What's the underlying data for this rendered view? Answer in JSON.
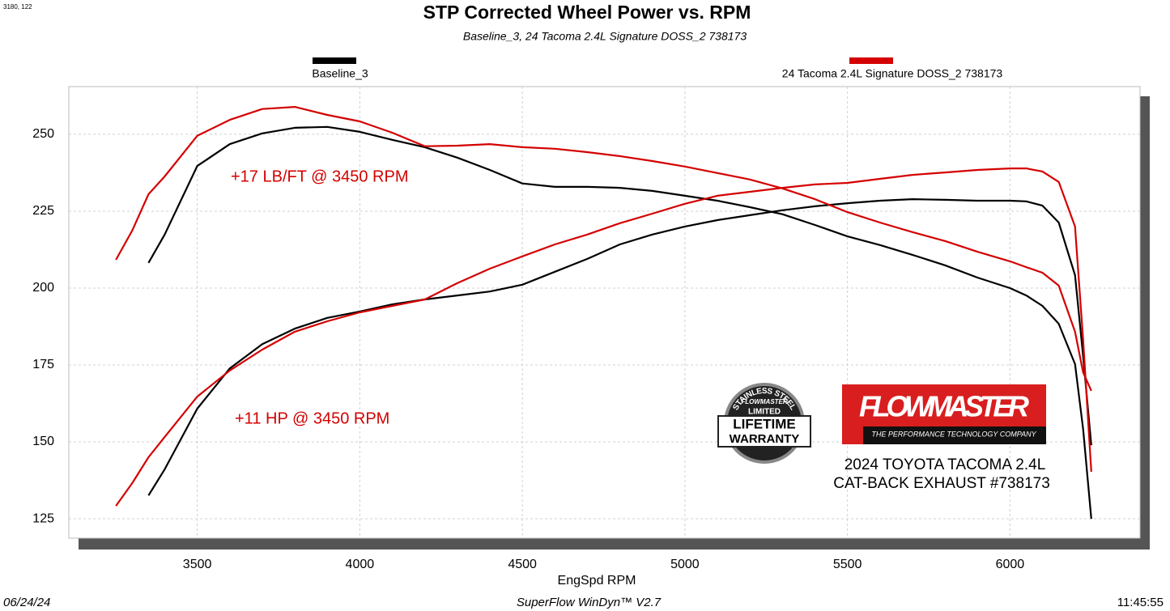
{
  "corner_note": "3180, 122",
  "chart_data": {
    "type": "line",
    "title": "STP Corrected Wheel Power vs. RPM",
    "subtitle": "Baseline_3, 24 Tacoma 2.4L Signature DOSS_2 738173",
    "x_label": "EngSpd  RPM",
    "x": [
      3250,
      3300,
      3350,
      3400,
      3500,
      3600,
      3700,
      3800,
      3900,
      4000,
      4100,
      4200,
      4300,
      4400,
      4500,
      4600,
      4700,
      4800,
      4900,
      5000,
      5100,
      5200,
      5300,
      5400,
      5500,
      5600,
      5700,
      5800,
      5900,
      6000,
      6050,
      6100,
      6150,
      6200,
      6225,
      6250
    ],
    "series": [
      {
        "name": "Baseline_3",
        "color": "#000000",
        "curves": [
          [
            null,
            null,
            208.2,
            217.4,
            239.7,
            246.8,
            250.3,
            252.1,
            252.4,
            250.8,
            248.2,
            245.8,
            242.4,
            238.4,
            234,
            232.9,
            232.9,
            232.6,
            231.6,
            230,
            228.4,
            226.3,
            224,
            220.5,
            216.8,
            214,
            210.8,
            207.4,
            203.4,
            200,
            197.6,
            194.2,
            188.4,
            175.3,
            154.2,
            125
          ],
          [
            null,
            null,
            132.6,
            141.1,
            160.8,
            173.9,
            181.8,
            186.8,
            190.3,
            192.4,
            194.7,
            196.3,
            197.6,
            198.9,
            201.1,
            205.3,
            209.5,
            214.2,
            217.4,
            220,
            222.1,
            223.7,
            225.3,
            226.6,
            227.6,
            228.4,
            228.9,
            228.7,
            228.4,
            228.4,
            228.2,
            226.8,
            221.3,
            204.2,
            177.9,
            148.9
          ]
        ]
      },
      {
        "name": "24 Tacoma 2.4L Signature DOSS_2 738173",
        "color": "#d40000",
        "curves": [
          [
            209.2,
            218.7,
            230.5,
            236.3,
            249.5,
            254.7,
            258.2,
            258.9,
            256.3,
            254.2,
            250.5,
            246.1,
            246.3,
            246.8,
            245.8,
            245.3,
            244.2,
            242.9,
            241.3,
            239.5,
            237.4,
            235.3,
            232.4,
            228.9,
            224.7,
            221.3,
            218.2,
            215.3,
            211.8,
            208.7,
            206.8,
            205,
            200.8,
            185.8,
            172.6,
            166.6
          ],
          [
            129.2,
            136.6,
            145,
            151.6,
            164.7,
            173.2,
            180,
            185.8,
            189.2,
            192.1,
            194.2,
            196.3,
            201.6,
            206.3,
            210.3,
            214.2,
            217.4,
            221.1,
            224.2,
            227.4,
            230,
            231.3,
            232.6,
            233.7,
            234.2,
            235.5,
            236.8,
            237.6,
            238.4,
            238.9,
            238.9,
            237.9,
            234.5,
            220,
            183.2,
            140.3
          ]
        ]
      }
    ],
    "xlim": [
      3105,
      6400
    ],
    "xticks": [
      3500,
      4000,
      4500,
      5000,
      5500,
      6000
    ],
    "ylim": [
      118.7,
      265.5
    ],
    "yticks": [
      125,
      150,
      175,
      200,
      225,
      250
    ],
    "grid": true,
    "annotations": [
      {
        "text": "+17 LB/FT @ 3450 RPM",
        "color": "#d40000"
      },
      {
        "text": "+11 HP @ 3450 RPM",
        "color": "#d40000"
      }
    ]
  },
  "badge": {
    "arc": "STAINLESS STEEL",
    "brand": "FLOWMASTER",
    "line1": "LIMITED",
    "line2": "LIFETIME",
    "line3": "WARRANTY"
  },
  "brand": {
    "name": "FLOWMASTER",
    "tagline": "THE PERFORMANCE TECHNOLOGY COMPANY",
    "product1": "2024 TOYOTA TACOMA 2.4L",
    "product2": "CAT-BACK EXHAUST #738173"
  },
  "footer": {
    "date": "06/24/24",
    "software": "SuperFlow WinDyn™  V2.7",
    "time": "11:45:55"
  }
}
